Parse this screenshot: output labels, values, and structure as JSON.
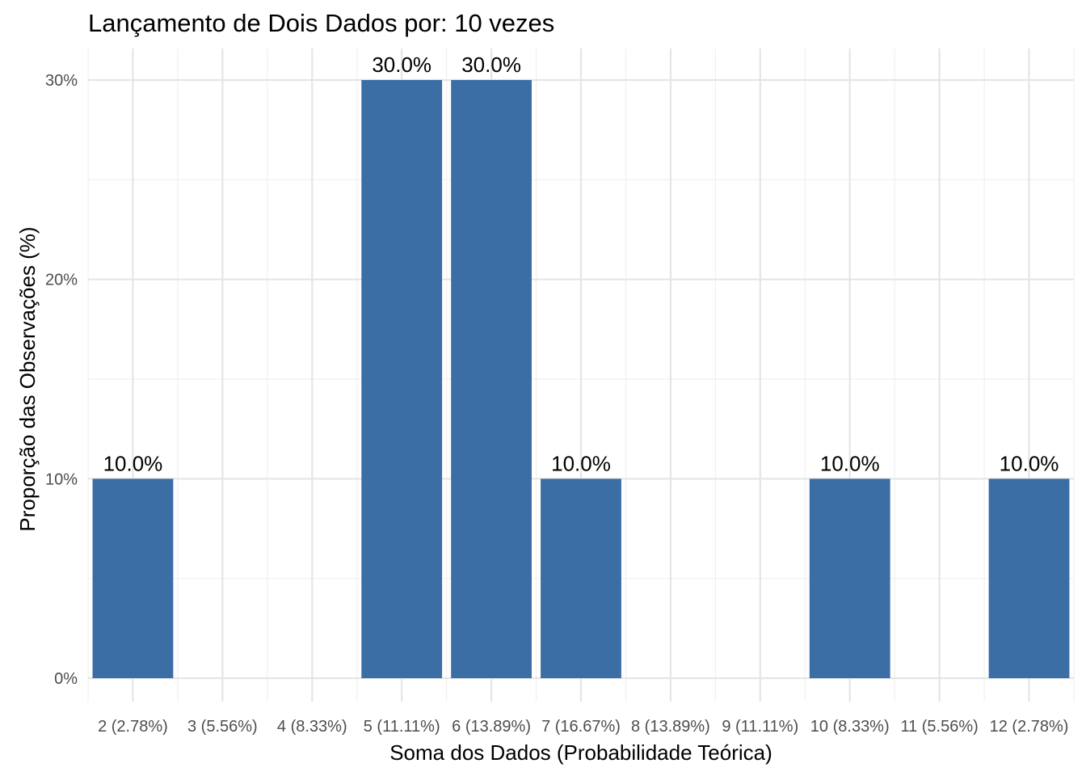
{
  "chart_data": {
    "type": "bar",
    "title": "Lançamento de Dois Dados por: 10 vezes",
    "xlabel": "Soma dos Dados (Probabilidade Teórica)",
    "ylabel": "Proporção das Observações (%)",
    "categories": [
      "2 (2.78%)",
      "3 (5.56%)",
      "4 (8.33%)",
      "5 (11.11%)",
      "6 (13.89%)",
      "7 (16.67%)",
      "8 (13.89%)",
      "9 (11.11%)",
      "10 (8.33%)",
      "11 (5.56%)",
      "12 (2.78%)"
    ],
    "x": [
      2,
      5,
      6,
      7,
      10,
      12
    ],
    "values": [
      10.0,
      30.0,
      30.0,
      10.0,
      10.0,
      10.0
    ],
    "data_labels": [
      "10.0%",
      "30.0%",
      "30.0%",
      "10.0%",
      "10.0%",
      "10.0%"
    ],
    "y_ticks": [
      0,
      10,
      20,
      30
    ],
    "y_tick_labels": [
      "0%",
      "10%",
      "20%",
      "30%"
    ],
    "x_breaks": [
      2,
      3,
      4,
      5,
      6,
      7,
      8,
      9,
      10,
      11,
      12
    ],
    "x_minor_step": 0.5,
    "xlim": [
      1.5,
      12.5
    ],
    "ylim": [
      -1.3,
      31.5
    ],
    "bar_color": "#3a6ea5",
    "grid": true,
    "legend": "none"
  }
}
